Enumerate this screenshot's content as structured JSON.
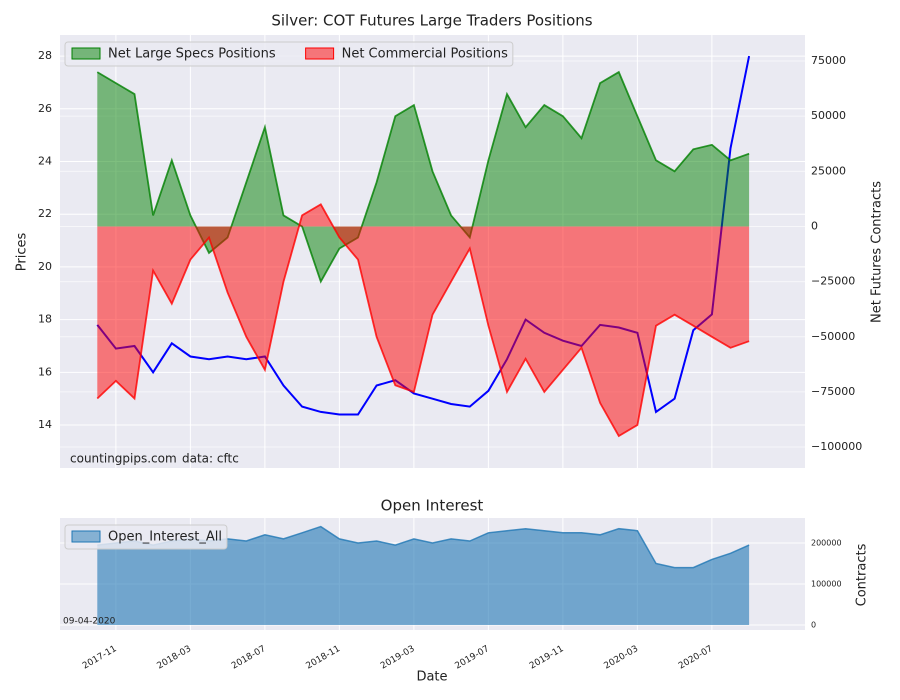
{
  "chart_data": [
    {
      "type": "area",
      "title": "Silver: COT Futures Large Traders Positions",
      "ylabel": "Prices",
      "y2label": "Net Futures Contracts",
      "annotations": [
        "countingpips.com",
        "data: cftc"
      ],
      "x": [
        "2017-10",
        "2017-11",
        "2017-12",
        "2018-01",
        "2018-02",
        "2018-03",
        "2018-04",
        "2018-05",
        "2018-06",
        "2018-07",
        "2018-08",
        "2018-09",
        "2018-10",
        "2018-11",
        "2018-12",
        "2019-01",
        "2019-02",
        "2019-03",
        "2019-04",
        "2019-05",
        "2019-06",
        "2019-07",
        "2019-08",
        "2019-09",
        "2019-10",
        "2019-11",
        "2019-12",
        "2020-01",
        "2020-02",
        "2020-03",
        "2020-04",
        "2020-05",
        "2020-06",
        "2020-07",
        "2020-08",
        "2020-09"
      ],
      "xlim": [
        "2017-08",
        "2020-12"
      ],
      "ylim": [
        12.37,
        28.8
      ],
      "yticks": [
        14,
        16,
        18,
        20,
        22,
        24,
        26,
        28
      ],
      "y2lim": [
        -109500,
        86800
      ],
      "y2ticks": [
        {
          "value": -100000,
          "label": "−100000"
        },
        {
          "value": -75000,
          "label": "−75000"
        },
        {
          "value": -50000,
          "label": "−50000"
        },
        {
          "value": -25000,
          "label": "−25000"
        },
        0,
        25000,
        50000,
        75000
      ],
      "grid": true,
      "legend": "upper left",
      "series": [
        {
          "style": "line",
          "axis": "y",
          "color": "#0000ff",
          "values": [
            17.8,
            16.9,
            17.0,
            16.0,
            17.1,
            16.6,
            16.5,
            16.6,
            16.5,
            16.6,
            15.5,
            14.7,
            14.5,
            14.4,
            14.4,
            15.5,
            15.7,
            15.2,
            15.0,
            14.8,
            14.7,
            15.3,
            16.5,
            18.0,
            17.5,
            17.2,
            17.0,
            17.8,
            17.7,
            17.5,
            14.5,
            15.0,
            17.6,
            18.2,
            24.5,
            28.0
          ]
        },
        {
          "name": "Net Large Specs Positions",
          "style": "area",
          "axis": "y2",
          "color": "#008000",
          "values": [
            70000,
            65000,
            60000,
            5000,
            30000,
            5000,
            -12000,
            -5000,
            20000,
            45000,
            5000,
            0,
            -25000,
            -10000,
            -5000,
            20000,
            50000,
            55000,
            25000,
            5000,
            -5000,
            30000,
            60000,
            45000,
            55000,
            50000,
            40000,
            65000,
            70000,
            50000,
            30000,
            25000,
            35000,
            37000,
            30000,
            33000
          ]
        },
        {
          "name": "Net Commercial Positions",
          "style": "area",
          "axis": "y2",
          "color": "#ff0000",
          "values": [
            -78000,
            -70000,
            -78000,
            -20000,
            -35000,
            -15000,
            -5000,
            -30000,
            -50000,
            -65000,
            -25000,
            5000,
            10000,
            -5000,
            -15000,
            -50000,
            -72000,
            -75000,
            -40000,
            -25000,
            -10000,
            -45000,
            -75000,
            -60000,
            -75000,
            -65000,
            -55000,
            -80000,
            -95000,
            -90000,
            -45000,
            -40000,
            -45000,
            -50000,
            -55000,
            -52000
          ]
        }
      ]
    },
    {
      "type": "area",
      "title": "Open Interest",
      "ylabel": "Contracts",
      "xlabel": "Date",
      "annotations": [
        "09-04-2020"
      ],
      "x": [
        "2017-10",
        "2017-11",
        "2017-12",
        "2018-01",
        "2018-02",
        "2018-03",
        "2018-04",
        "2018-05",
        "2018-06",
        "2018-07",
        "2018-08",
        "2018-09",
        "2018-10",
        "2018-11",
        "2018-12",
        "2019-01",
        "2019-02",
        "2019-03",
        "2019-04",
        "2019-05",
        "2019-06",
        "2019-07",
        "2019-08",
        "2019-09",
        "2019-10",
        "2019-11",
        "2019-12",
        "2020-01",
        "2020-02",
        "2020-03",
        "2020-04",
        "2020-05",
        "2020-06",
        "2020-07",
        "2020-08",
        "2020-09"
      ],
      "xlim": [
        "2017-08",
        "2020-12"
      ],
      "xticks": [
        "2017-11",
        "2018-03",
        "2018-07",
        "2018-11",
        "2019-03",
        "2019-07",
        "2019-11",
        "2020-03",
        "2020-07"
      ],
      "ylim": [
        -12200,
        261000
      ],
      "yticks": [
        0,
        100000,
        200000
      ],
      "yaxis_side": "right",
      "grid": true,
      "legend": "upper left",
      "series": [
        {
          "name": "Open_Interest_All",
          "style": "area",
          "axis": "y",
          "color": "#1f77b4",
          "values": [
            195000,
            200000,
            205000,
            195000,
            205000,
            210000,
            205000,
            210000,
            205000,
            220000,
            210000,
            225000,
            240000,
            210000,
            200000,
            205000,
            195000,
            210000,
            200000,
            210000,
            205000,
            225000,
            230000,
            235000,
            230000,
            225000,
            225000,
            220000,
            235000,
            230000,
            150000,
            140000,
            140000,
            160000,
            175000,
            195000
          ]
        }
      ]
    }
  ]
}
